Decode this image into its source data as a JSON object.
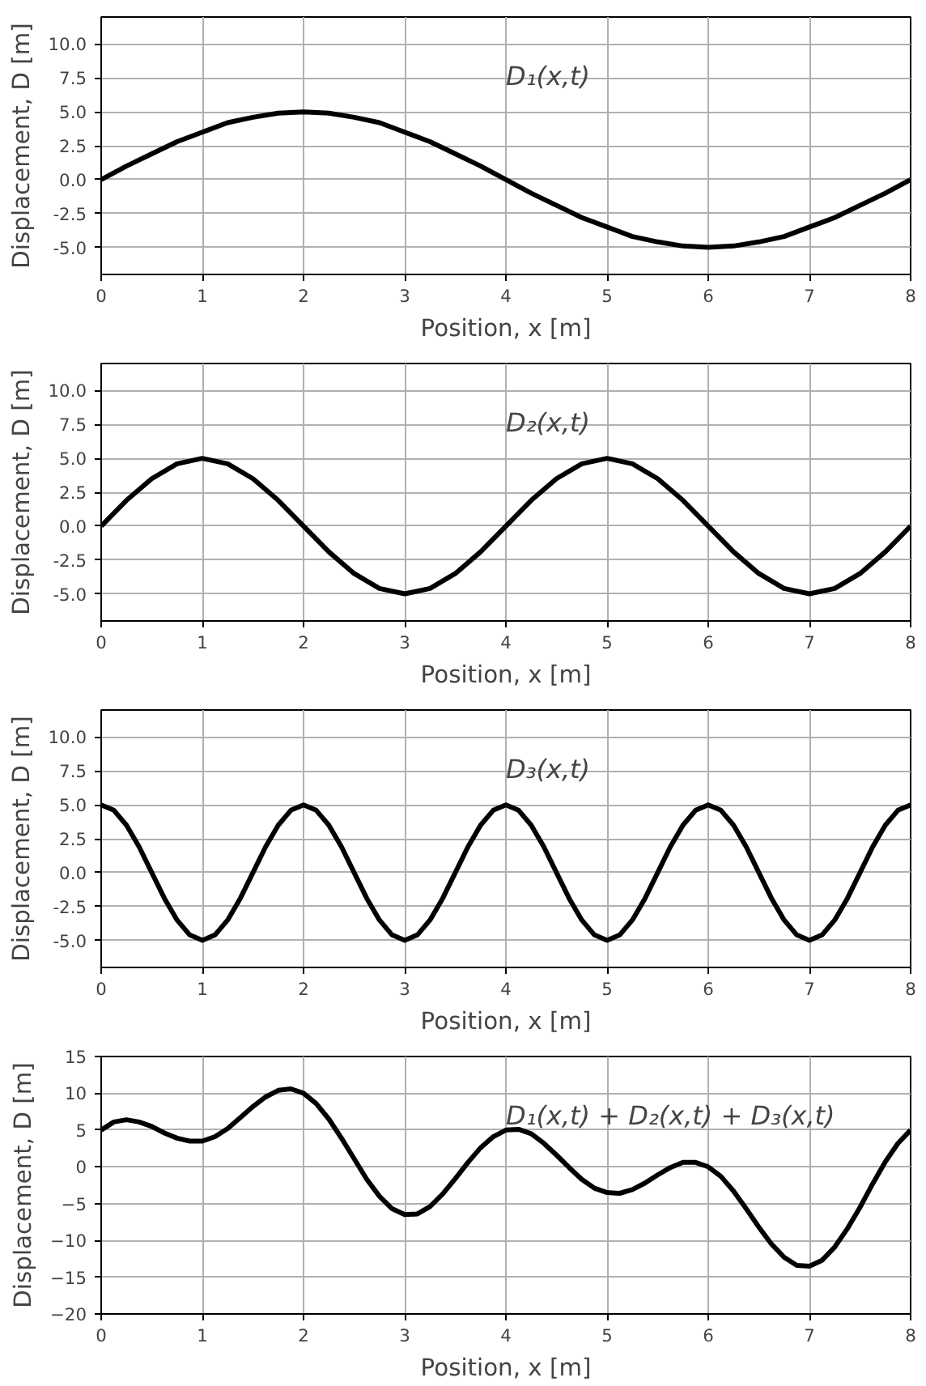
{
  "chart_data": [
    {
      "type": "line",
      "xlabel": "Position, x [m]",
      "ylabel": "Displacement, D [m]",
      "annotations": [
        "D₁(x,t)"
      ],
      "x": [
        0,
        0.25,
        0.5,
        0.75,
        1,
        1.25,
        1.5,
        1.75,
        2,
        2.25,
        2.5,
        2.75,
        3,
        3.25,
        3.5,
        3.75,
        4,
        4.25,
        4.5,
        4.75,
        5,
        5.25,
        5.5,
        5.75,
        6,
        6.25,
        6.5,
        6.75,
        7,
        7.25,
        7.5,
        7.75,
        8
      ],
      "series": [
        {
          "color": "#000000",
          "values": [
            0,
            1.0,
            1.9,
            2.8,
            3.5,
            4.2,
            4.6,
            4.9,
            5,
            4.9,
            4.6,
            4.2,
            3.5,
            2.8,
            1.9,
            1.0,
            0,
            -1.0,
            -1.9,
            -2.8,
            -3.5,
            -4.2,
            -4.6,
            -4.9,
            -5,
            -4.9,
            -4.6,
            -4.2,
            -3.5,
            -2.8,
            -1.9,
            -1.0,
            0
          ]
        }
      ],
      "xlim": [
        0,
        8
      ],
      "xticks": [
        0,
        1,
        2,
        3,
        4,
        5,
        6,
        7,
        8
      ],
      "ylim": [
        -7,
        12
      ],
      "yticks": [
        {
          "value": -5,
          "label": "-5.0"
        },
        {
          "value": -2.5,
          "label": "-2.5"
        },
        {
          "value": 0,
          "label": "0.0"
        },
        {
          "value": 2.5,
          "label": "2.5"
        },
        {
          "value": 5,
          "label": "5.0"
        },
        {
          "value": 7.5,
          "label": "7.5"
        },
        {
          "value": 10,
          "label": "10.0"
        }
      ],
      "grid": true,
      "line_style": "solid"
    },
    {
      "type": "line",
      "xlabel": "Position, x [m]",
      "ylabel": "Displacement, D [m]",
      "annotations": [
        "D₂(x,t)"
      ],
      "x": [
        0,
        0.25,
        0.5,
        0.75,
        1,
        1.25,
        1.5,
        1.75,
        2,
        2.25,
        2.5,
        2.75,
        3,
        3.25,
        3.5,
        3.75,
        4,
        4.25,
        4.5,
        4.75,
        5,
        5.25,
        5.5,
        5.75,
        6,
        6.25,
        6.5,
        6.75,
        7,
        7.25,
        7.5,
        7.75,
        8
      ],
      "series": [
        {
          "color": "#000000",
          "values": [
            0,
            1.9,
            3.5,
            4.6,
            5,
            4.6,
            3.5,
            1.9,
            0,
            -1.9,
            -3.5,
            -4.6,
            -5,
            -4.6,
            -3.5,
            -1.9,
            0,
            1.9,
            3.5,
            4.6,
            5,
            4.6,
            3.5,
            1.9,
            0,
            -1.9,
            -3.5,
            -4.6,
            -5,
            -4.6,
            -3.5,
            -1.9,
            0
          ]
        }
      ],
      "xlim": [
        0,
        8
      ],
      "xticks": [
        0,
        1,
        2,
        3,
        4,
        5,
        6,
        7,
        8
      ],
      "ylim": [
        -7,
        12
      ],
      "yticks": [
        {
          "value": -5,
          "label": "-5.0"
        },
        {
          "value": -2.5,
          "label": "-2.5"
        },
        {
          "value": 0,
          "label": "0.0"
        },
        {
          "value": 2.5,
          "label": "2.5"
        },
        {
          "value": 5,
          "label": "5.0"
        },
        {
          "value": 7.5,
          "label": "7.5"
        },
        {
          "value": 10,
          "label": "10.0"
        }
      ],
      "grid": true,
      "line_style": "solid"
    },
    {
      "type": "line",
      "xlabel": "Position, x [m]",
      "ylabel": "Displacement, D [m]",
      "annotations": [
        "D₃(x,t)"
      ],
      "x": [
        0,
        0.125,
        0.25,
        0.375,
        0.5,
        0.625,
        0.75,
        0.875,
        1,
        1.125,
        1.25,
        1.375,
        1.5,
        1.625,
        1.75,
        1.875,
        2,
        2.125,
        2.25,
        2.375,
        2.5,
        2.625,
        2.75,
        2.875,
        3,
        3.125,
        3.25,
        3.375,
        3.5,
        3.625,
        3.75,
        3.875,
        4,
        4.125,
        4.25,
        4.375,
        4.5,
        4.625,
        4.75,
        4.875,
        5,
        5.125,
        5.25,
        5.375,
        5.5,
        5.625,
        5.75,
        5.875,
        6,
        6.125,
        6.25,
        6.375,
        6.5,
        6.625,
        6.75,
        6.875,
        7,
        7.125,
        7.25,
        7.375,
        7.5,
        7.625,
        7.75,
        7.875,
        8
      ],
      "series": [
        {
          "color": "#000000",
          "values": [
            5,
            4.6,
            3.5,
            1.9,
            0,
            -1.9,
            -3.5,
            -4.6,
            -5,
            -4.6,
            -3.5,
            -1.9,
            0,
            1.9,
            3.5,
            4.6,
            5,
            4.6,
            3.5,
            1.9,
            0,
            -1.9,
            -3.5,
            -4.6,
            -5,
            -4.6,
            -3.5,
            -1.9,
            0,
            1.9,
            3.5,
            4.6,
            5,
            4.6,
            3.5,
            1.9,
            0,
            -1.9,
            -3.5,
            -4.6,
            -5,
            -4.6,
            -3.5,
            -1.9,
            0,
            1.9,
            3.5,
            4.6,
            5,
            4.6,
            3.5,
            1.9,
            0,
            -1.9,
            -3.5,
            -4.6,
            -5,
            -4.6,
            -3.5,
            -1.9,
            0,
            1.9,
            3.5,
            4.6,
            5
          ]
        }
      ],
      "xlim": [
        0,
        8
      ],
      "xticks": [
        0,
        1,
        2,
        3,
        4,
        5,
        6,
        7,
        8
      ],
      "ylim": [
        -7,
        12
      ],
      "yticks": [
        {
          "value": -5,
          "label": "-5.0"
        },
        {
          "value": -2.5,
          "label": "-2.5"
        },
        {
          "value": 0,
          "label": "0.0"
        },
        {
          "value": 2.5,
          "label": "2.5"
        },
        {
          "value": 5,
          "label": "5.0"
        },
        {
          "value": 7.5,
          "label": "7.5"
        },
        {
          "value": 10,
          "label": "10.0"
        }
      ],
      "grid": true,
      "line_style": "solid"
    },
    {
      "type": "line",
      "xlabel": "Position, x [m]",
      "ylabel": "Displacement, D [m]",
      "annotations": [
        "D₁(x,t) + D₂(x,t) + D₃(x,t)"
      ],
      "x": [
        0,
        0.125,
        0.25,
        0.375,
        0.5,
        0.625,
        0.75,
        0.875,
        1,
        1.125,
        1.25,
        1.375,
        1.5,
        1.625,
        1.75,
        1.875,
        2,
        2.125,
        2.25,
        2.375,
        2.5,
        2.625,
        2.75,
        2.875,
        3,
        3.125,
        3.25,
        3.375,
        3.5,
        3.625,
        3.75,
        3.875,
        4,
        4.125,
        4.25,
        4.375,
        4.5,
        4.625,
        4.75,
        4.875,
        5,
        5.125,
        5.25,
        5.375,
        5.5,
        5.625,
        5.75,
        5.875,
        6,
        6.125,
        6.25,
        6.375,
        6.5,
        6.625,
        6.75,
        6.875,
        7,
        7.125,
        7.25,
        7.375,
        7.5,
        7.625,
        7.75,
        7.875,
        8
      ],
      "series": [
        {
          "color": "#000000",
          "values": [
            5,
            6.1,
            6.4,
            6.1,
            5.5,
            4.6,
            3.9,
            3.5,
            3.5,
            4.1,
            5.2,
            6.7,
            8.2,
            9.5,
            10.4,
            10.6,
            10,
            8.6,
            6.5,
            3.9,
            1.1,
            -1.7,
            -4.0,
            -5.7,
            -6.5,
            -6.4,
            -5.4,
            -3.7,
            -1.6,
            0.6,
            2.6,
            4.1,
            5,
            5.1,
            4.5,
            3.2,
            1.6,
            -0.1,
            -1.7,
            -2.9,
            -3.5,
            -3.6,
            -3.1,
            -2.2,
            -1.1,
            -0.1,
            0.6,
            0.6,
            0,
            -1.3,
            -3.3,
            -5.7,
            -8.2,
            -10.5,
            -12.3,
            -13.4,
            -13.5,
            -12.7,
            -10.9,
            -8.4,
            -5.5,
            -2.3,
            0.7,
            3.2,
            5
          ]
        }
      ],
      "xlim": [
        0,
        8
      ],
      "xticks": [
        0,
        1,
        2,
        3,
        4,
        5,
        6,
        7,
        8
      ],
      "ylim": [
        -20,
        15
      ],
      "yticks": [
        -20,
        -15,
        -10,
        -5,
        0,
        5,
        10,
        15
      ],
      "grid": true,
      "line_style": "solid"
    }
  ]
}
